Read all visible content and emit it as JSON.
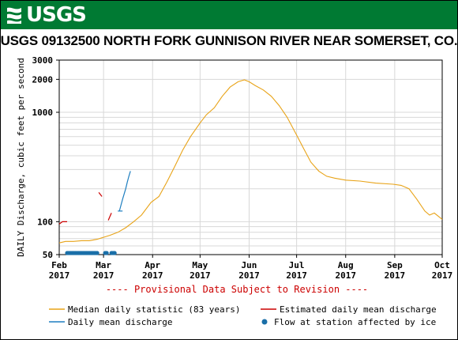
{
  "header": {
    "logo_text": "USGS",
    "title": "USGS 09132500 NORTH FORK GUNNISON RIVER NEAR SOMERSET, CO."
  },
  "colors": {
    "banner": "#007a33",
    "median": "#e8a317",
    "estimated": "#cc0000",
    "daily": "#1f7fc0",
    "ice": "#1a6fa8"
  },
  "chart_data": {
    "type": "line",
    "title": "USGS 09132500 NORTH FORK GUNNISON RIVER NEAR SOMERSET, CO.",
    "ylabel": "DAILY Discharge, cubic feet per second",
    "xlabel": "",
    "yscale": "log",
    "ylim": [
      50,
      3000
    ],
    "y_ticks": [
      {
        "value": 50,
        "label": "50"
      },
      {
        "value": 100,
        "label": "100"
      },
      {
        "value": 1000,
        "label": "1000"
      },
      {
        "value": 2000,
        "label": "2000"
      },
      {
        "value": 3000,
        "label": "3000"
      }
    ],
    "x_range": [
      "2017-02-01",
      "2017-10-01"
    ],
    "x_ticks": [
      {
        "date": "2017-02-01",
        "month": "Feb",
        "year": "2017"
      },
      {
        "date": "2017-03-01",
        "month": "Mar",
        "year": "2017"
      },
      {
        "date": "2017-04-01",
        "month": "Apr",
        "year": "2017"
      },
      {
        "date": "2017-05-01",
        "month": "May",
        "year": "2017"
      },
      {
        "date": "2017-06-01",
        "month": "Jun",
        "year": "2017"
      },
      {
        "date": "2017-07-01",
        "month": "Jul",
        "year": "2017"
      },
      {
        "date": "2017-08-01",
        "month": "Aug",
        "year": "2017"
      },
      {
        "date": "2017-09-01",
        "month": "Sep",
        "year": "2017"
      },
      {
        "date": "2017-10-01",
        "month": "Oct",
        "year": "2017"
      }
    ],
    "grid": true,
    "series": [
      {
        "name": "Median daily statistic (83 years)",
        "color": "#e8a317",
        "points": [
          [
            "2017-02-01",
            64
          ],
          [
            "2017-02-05",
            66
          ],
          [
            "2017-02-10",
            66
          ],
          [
            "2017-02-15",
            67
          ],
          [
            "2017-02-20",
            67
          ],
          [
            "2017-02-25",
            69
          ],
          [
            "2017-03-01",
            72
          ],
          [
            "2017-03-05",
            75
          ],
          [
            "2017-03-10",
            80
          ],
          [
            "2017-03-15",
            88
          ],
          [
            "2017-03-20",
            100
          ],
          [
            "2017-03-25",
            115
          ],
          [
            "2017-03-31",
            150
          ],
          [
            "2017-04-05",
            170
          ],
          [
            "2017-04-10",
            230
          ],
          [
            "2017-04-15",
            320
          ],
          [
            "2017-04-20",
            450
          ],
          [
            "2017-04-25",
            600
          ],
          [
            "2017-05-01",
            800
          ],
          [
            "2017-05-05",
            950
          ],
          [
            "2017-05-10",
            1100
          ],
          [
            "2017-05-15",
            1400
          ],
          [
            "2017-05-20",
            1700
          ],
          [
            "2017-05-25",
            1900
          ],
          [
            "2017-05-29",
            1980
          ],
          [
            "2017-06-01",
            1900
          ],
          [
            "2017-06-05",
            1750
          ],
          [
            "2017-06-10",
            1600
          ],
          [
            "2017-06-15",
            1400
          ],
          [
            "2017-06-20",
            1150
          ],
          [
            "2017-06-25",
            900
          ],
          [
            "2017-07-01",
            620
          ],
          [
            "2017-07-05",
            480
          ],
          [
            "2017-07-10",
            350
          ],
          [
            "2017-07-15",
            290
          ],
          [
            "2017-07-20",
            260
          ],
          [
            "2017-07-25",
            250
          ],
          [
            "2017-08-01",
            240
          ],
          [
            "2017-08-10",
            235
          ],
          [
            "2017-08-20",
            225
          ],
          [
            "2017-08-31",
            220
          ],
          [
            "2017-09-05",
            215
          ],
          [
            "2017-09-10",
            200
          ],
          [
            "2017-09-15",
            160
          ],
          [
            "2017-09-20",
            125
          ],
          [
            "2017-09-23",
            115
          ],
          [
            "2017-09-26",
            120
          ],
          [
            "2017-10-01",
            105
          ]
        ]
      },
      {
        "name": "Estimated daily mean discharge",
        "color": "#cc0000",
        "segments": [
          [
            [
              "2017-02-01",
              95
            ],
            [
              "2017-02-03",
              100
            ],
            [
              "2017-02-06",
              100
            ]
          ],
          [
            [
              "2017-02-26",
              185
            ],
            [
              "2017-02-28",
              170
            ]
          ],
          [
            [
              "2017-03-04",
              103
            ],
            [
              "2017-03-06",
              120
            ]
          ]
        ]
      },
      {
        "name": "Daily mean discharge",
        "color": "#1f7fc0",
        "segments": [
          [
            [
              "2017-03-11",
              125
            ],
            [
              "2017-03-13",
              160
            ],
            [
              "2017-03-15",
              200
            ],
            [
              "2017-03-16",
              230
            ],
            [
              "2017-03-17",
              260
            ],
            [
              "2017-03-18",
              290
            ]
          ],
          [
            [
              "2017-03-10",
              125
            ],
            [
              "2017-03-13",
              125
            ]
          ]
        ]
      },
      {
        "name": "Flow at station affected by ice",
        "color": "#1a6fa8",
        "marker_dates": [
          "2017-02-06",
          "2017-02-07",
          "2017-02-08",
          "2017-02-09",
          "2017-02-10",
          "2017-02-11",
          "2017-02-12",
          "2017-02-13",
          "2017-02-14",
          "2017-02-15",
          "2017-02-16",
          "2017-02-17",
          "2017-02-18",
          "2017-02-19",
          "2017-02-20",
          "2017-02-21",
          "2017-02-22",
          "2017-02-23",
          "2017-02-24",
          "2017-02-25",
          "2017-03-02",
          "2017-03-03",
          "2017-03-06",
          "2017-03-07",
          "2017-03-08"
        ]
      }
    ],
    "annotation": "---- Provisional Data Subject to Revision ----",
    "legend": [
      {
        "label": "Median daily statistic (83 years)",
        "kind": "line",
        "color": "#e8a317"
      },
      {
        "label": "Estimated daily mean discharge",
        "kind": "line",
        "color": "#cc0000"
      },
      {
        "label": "Daily mean discharge",
        "kind": "line",
        "color": "#1f7fc0"
      },
      {
        "label": "Flow at station affected by ice",
        "kind": "marker",
        "color": "#1a6fa8"
      }
    ],
    "legend_position": "bottom"
  }
}
